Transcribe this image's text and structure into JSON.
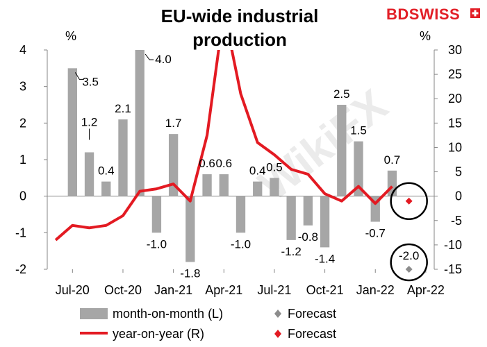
{
  "title_line1": "EU-wide industrial",
  "title_line2": "production",
  "brand": {
    "part1": "BD",
    "part2": "SWISS",
    "color1": "#e21e26",
    "color2": "#e21e26"
  },
  "left_unit": "%",
  "right_unit": "%",
  "legend": {
    "mom": "month-on-month (L)",
    "yoy": "year-on-year (R)",
    "mom_forecast": "Forecast",
    "yoy_forecast": "Forecast"
  },
  "colors": {
    "bars": "#a6a6a6",
    "line": "#e31a22",
    "mom_forecast": "#8c8c8c",
    "yoy_forecast": "#e31a22"
  },
  "chart_data": {
    "type": "bar",
    "title": "EU-wide industrial production",
    "x_tick_labels": [
      "Jul-20",
      "Oct-20",
      "Jan-21",
      "Apr-21",
      "Jul-21",
      "Oct-21",
      "Jan-22",
      "Apr-22"
    ],
    "x_tick_months": [
      "2020-07",
      "2020-10",
      "2021-01",
      "2021-04",
      "2021-07",
      "2021-10",
      "2022-01",
      "2022-04"
    ],
    "months": [
      "2020-06",
      "2020-07",
      "2020-08",
      "2020-09",
      "2020-10",
      "2020-11",
      "2020-12",
      "2021-01",
      "2021-02",
      "2021-03",
      "2021-04",
      "2021-05",
      "2021-06",
      "2021-07",
      "2021-08",
      "2021-09",
      "2021-10",
      "2021-11",
      "2021-12",
      "2022-01",
      "2022-02",
      "2022-03",
      "2022-04"
    ],
    "y_left": {
      "ticks": [
        "-2",
        "-1",
        "0",
        "1",
        "2",
        "3",
        "4"
      ],
      "ylim": [
        -2,
        4
      ],
      "unit": "%"
    },
    "y_right": {
      "ticks": [
        "-15",
        "-10",
        "-5",
        "0",
        "5",
        "10",
        "15",
        "20",
        "25",
        "30"
      ],
      "ylim": [
        -15,
        30
      ],
      "unit": "%"
    },
    "series": [
      {
        "name": "month-on-month (L)",
        "axis": "left",
        "kind": "bar",
        "months": [
          "2020-07",
          "2020-08",
          "2020-09",
          "2020-10",
          "2020-11",
          "2020-12",
          "2021-01",
          "2021-02",
          "2021-03",
          "2021-04",
          "2021-05",
          "2021-06",
          "2021-07",
          "2021-08",
          "2021-09",
          "2021-10",
          "2021-11",
          "2021-12",
          "2022-01",
          "2022-02"
        ],
        "values": [
          3.5,
          1.2,
          0.4,
          2.1,
          4.0,
          -1.0,
          1.7,
          -1.8,
          0.6,
          0.6,
          -1.0,
          0.4,
          0.5,
          -1.2,
          -0.8,
          -1.4,
          2.5,
          1.5,
          -0.7,
          0.7
        ],
        "labels": [
          "3.5",
          "1.2",
          "0.4",
          "2.1",
          "4.0",
          "-1.0",
          "1.7",
          "-1.8",
          "0.6",
          "0.6",
          "-1.0",
          "0.4",
          "0.5",
          "-1.2",
          "-0.8",
          "-1.4",
          "2.5",
          "1.5",
          "-0.7",
          "0.7"
        ]
      },
      {
        "name": "year-on-year (R)",
        "axis": "right",
        "kind": "line",
        "months": [
          "2020-06",
          "2020-07",
          "2020-08",
          "2020-09",
          "2020-10",
          "2020-11",
          "2020-12",
          "2021-01",
          "2021-02",
          "2021-03",
          "2021-04",
          "2021-05",
          "2021-06",
          "2021-07",
          "2021-08",
          "2021-09",
          "2021-10",
          "2021-11",
          "2021-12",
          "2022-01",
          "2022-02"
        ],
        "values": [
          -9.0,
          -6.0,
          -6.5,
          -6.0,
          -4.0,
          1.0,
          1.5,
          2.5,
          -1.0,
          12.5,
          38.0,
          21.0,
          11.0,
          8.5,
          5.5,
          4.5,
          0.5,
          -1.0,
          2.0,
          -1.5,
          2.0
        ]
      },
      {
        "name": "Forecast",
        "axis": "left",
        "kind": "marker",
        "months": [
          "2022-03"
        ],
        "values": [
          -2.0
        ],
        "labels": [
          "-2.0"
        ]
      },
      {
        "name": "Forecast",
        "axis": "right",
        "kind": "marker",
        "months": [
          "2022-03"
        ],
        "values": [
          -1.0
        ]
      }
    ]
  }
}
